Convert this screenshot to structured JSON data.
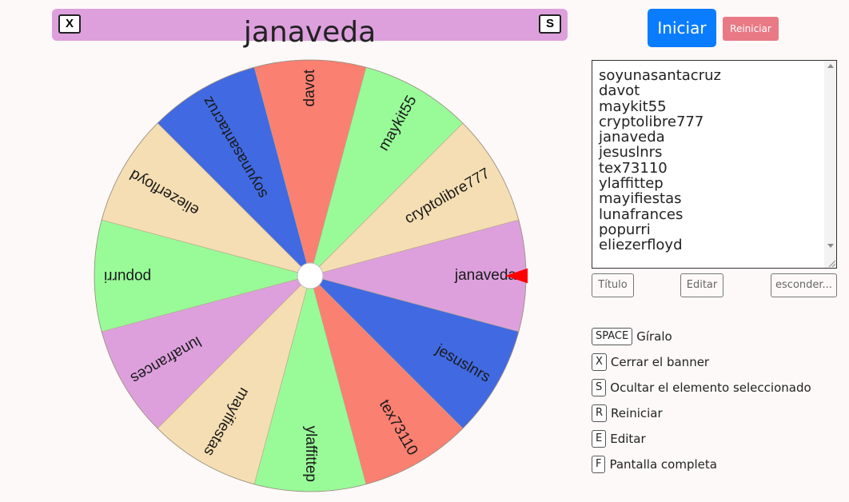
{
  "banner": {
    "title": "janaveda",
    "close_key": "X",
    "hide_key": "S"
  },
  "wheel": {
    "selected": "janaveda",
    "segments": [
      {
        "name": "soyunasantacruz",
        "color": "#4169e1"
      },
      {
        "name": "davot",
        "color": "#fa8072"
      },
      {
        "name": "maykit55",
        "color": "#98fb98"
      },
      {
        "name": "cryptolibre777",
        "color": "#f5deb3"
      },
      {
        "name": "janaveda",
        "color": "#dda0dd"
      },
      {
        "name": "jesuslnrs",
        "color": "#4169e1"
      },
      {
        "name": "tex73110",
        "color": "#fa8072"
      },
      {
        "name": "ylaffittep",
        "color": "#98fb98"
      },
      {
        "name": "mayifiestas",
        "color": "#f5deb3"
      },
      {
        "name": "lunafrances",
        "color": "#dda0dd"
      },
      {
        "name": "popurri",
        "color": "#98fb98"
      },
      {
        "name": "eliezerfloyd",
        "color": "#f5deb3"
      }
    ],
    "pointer_color": "#ff0000"
  },
  "controls": {
    "start_label": "Iniciar",
    "reset_label": "Reiniciar"
  },
  "names_box": {
    "items": [
      "soyunasantacruz",
      "davot",
      "maykit55",
      "cryptolibre777",
      "janaveda",
      "jesuslnrs",
      "tex73110",
      "ylaffittep",
      "mayifiestas",
      "lunafrances",
      "popurri",
      "eliezerfloyd"
    ]
  },
  "small_buttons": {
    "title": "Título",
    "edit": "Editar",
    "hide": "esconder..."
  },
  "shortcuts": [
    {
      "key": "SPACE",
      "label": "Gíralo"
    },
    {
      "key": "X",
      "label": "Cerrar el banner"
    },
    {
      "key": "S",
      "label": "Ocultar el elemento seleccionado"
    },
    {
      "key": "R",
      "label": "Reiniciar"
    },
    {
      "key": "E",
      "label": "Editar"
    },
    {
      "key": "F",
      "label": "Pantalla completa"
    }
  ],
  "colors": {
    "banner": "#dda0dd",
    "start_button": "#0a7cff",
    "reset_button": "#e97a85"
  }
}
